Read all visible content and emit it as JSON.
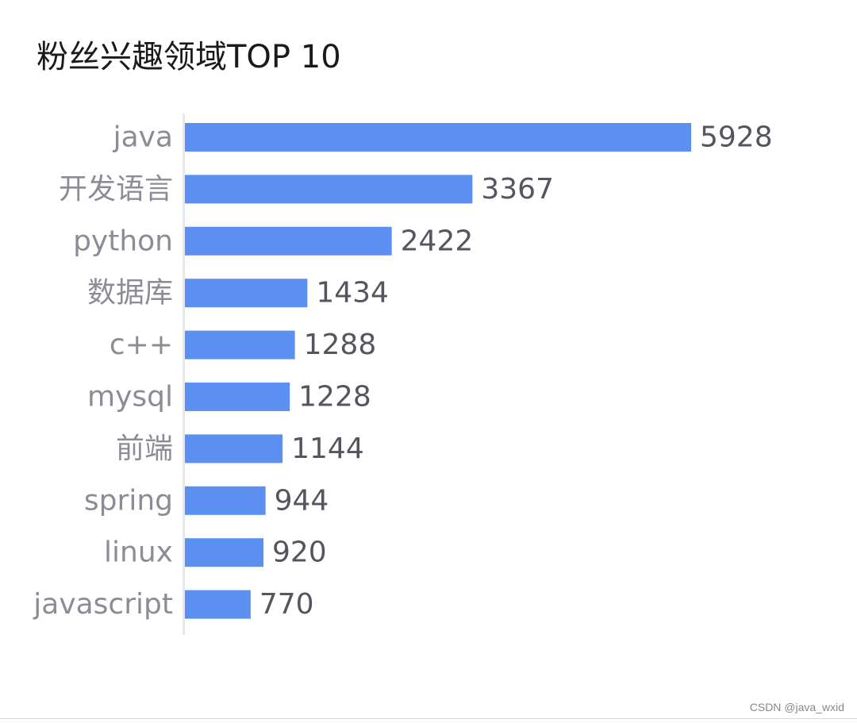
{
  "chart_data": {
    "type": "bar",
    "orientation": "horizontal",
    "title": "粉丝兴趣领域TOP 10",
    "categories": [
      "java",
      "开发语言",
      "python",
      "数据库",
      "c++",
      "mysql",
      "前端",
      "spring",
      "linux",
      "javascript"
    ],
    "values": [
      5928,
      3367,
      2422,
      1434,
      1288,
      1228,
      1144,
      944,
      920,
      770
    ],
    "xlim": [
      0,
      5928
    ],
    "bar_color": "#5b8ff0",
    "grid": false,
    "legend": "none"
  },
  "watermark": "CSDN @java_wxid"
}
